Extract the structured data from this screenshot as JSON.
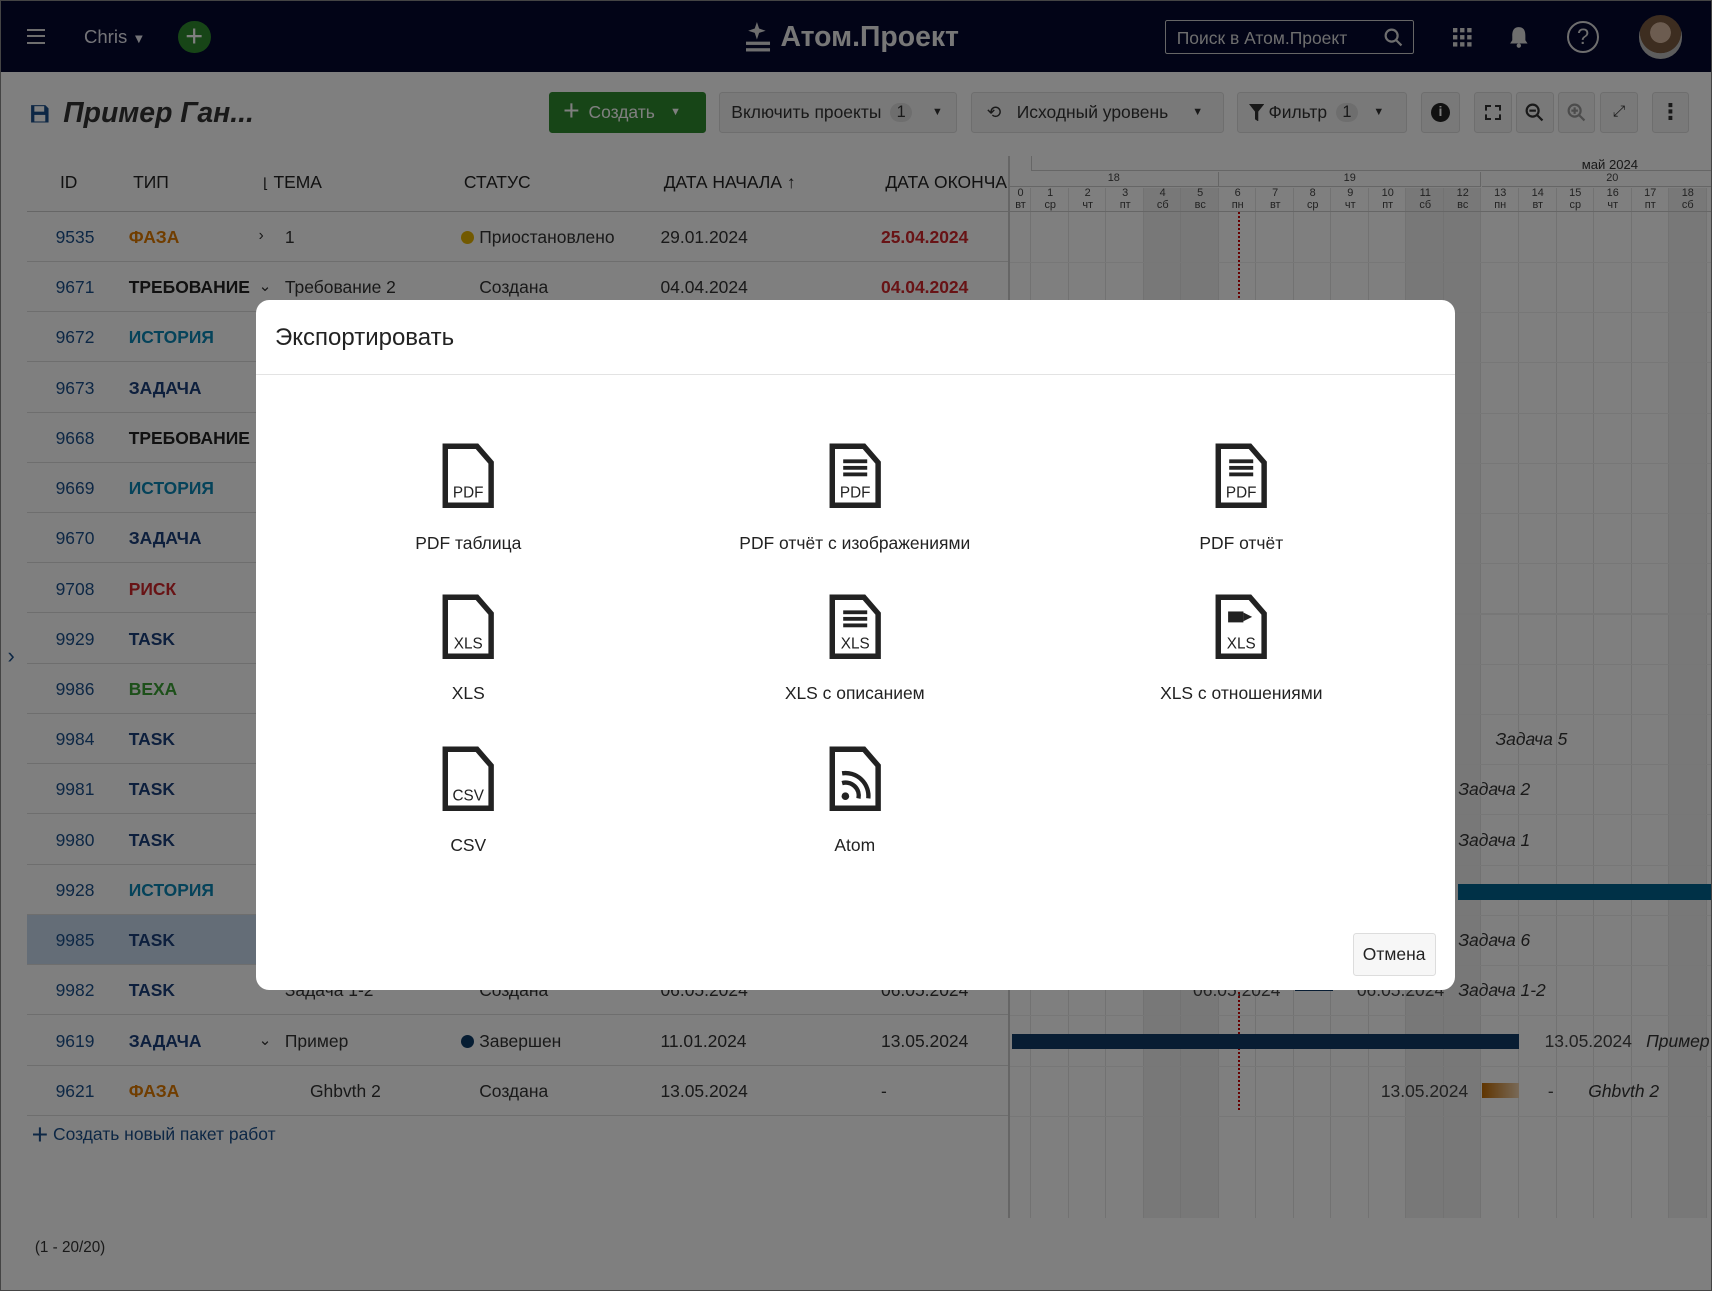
{
  "header": {
    "user": "Chris",
    "logo": "Атом.Проект",
    "search_placeholder": "Поиск в Атом.Проект",
    "icons": [
      "menu-icon",
      "plus-icon",
      "search-icon",
      "apps-grid-icon",
      "bell-icon",
      "help-icon",
      "avatar"
    ]
  },
  "toolbar": {
    "title": "Пример Ган...",
    "create": "Создать",
    "include_projects": "Включить проекты",
    "include_projects_count": "1",
    "baseline": "Исходный уровень",
    "filter": "Фильтр",
    "filter_count": "1"
  },
  "columns": {
    "id": "ID",
    "type": "ТИП",
    "subject": "ТЕМА",
    "status": "СТАТУС",
    "start": "ДАТА НАЧАЛА",
    "end": "ДАТА ОКОНЧА"
  },
  "colors": {
    "phase": "#e07b00",
    "requirement": "#222222",
    "story": "#0a86b4",
    "task_ru": "#1b3f7a",
    "risk": "#d0262b",
    "task": "#1b3f7a",
    "milestone": "#3aa035",
    "overdue": "#d0262b",
    "header_bg": "#04082f",
    "accent_green": "#2e8b2e"
  },
  "rows": [
    {
      "id": "9535",
      "type": "ФАЗА",
      "tc": "phase",
      "expand": ">",
      "subject": "1",
      "dot": "#e5b300",
      "status": "Приостановлено",
      "start": "29.01.2024",
      "end": "25.04.2024",
      "overdue": true
    },
    {
      "id": "9671",
      "type": "ТРЕБОВАНИЕ",
      "tc": "requirement",
      "expand": "v",
      "subject": "Требование 2",
      "status": "Создана",
      "start": "04.04.2024",
      "end": "04.04.2024",
      "overdue": true
    },
    {
      "id": "9672",
      "type": "ИСТОРИЯ",
      "tc": "story"
    },
    {
      "id": "9673",
      "type": "ЗАДАЧА",
      "tc": "task_ru"
    },
    {
      "id": "9668",
      "type": "ТРЕБОВАНИЕ",
      "tc": "requirement"
    },
    {
      "id": "9669",
      "type": "ИСТОРИЯ",
      "tc": "story"
    },
    {
      "id": "9670",
      "type": "ЗАДАЧА",
      "tc": "task_ru"
    },
    {
      "id": "9708",
      "type": "РИСК",
      "tc": "risk"
    },
    {
      "id": "9929",
      "type": "TASK",
      "tc": "task"
    },
    {
      "id": "9986",
      "type": "ВЕХА",
      "tc": "milestone"
    },
    {
      "id": "9984",
      "type": "TASK",
      "tc": "task"
    },
    {
      "id": "9981",
      "type": "TASK",
      "tc": "task"
    },
    {
      "id": "9980",
      "type": "TASK",
      "tc": "task"
    },
    {
      "id": "9928",
      "type": "ИСТОРИЯ",
      "tc": "story"
    },
    {
      "id": "9985",
      "type": "TASK",
      "tc": "task",
      "selected": true
    },
    {
      "id": "9982",
      "type": "TASK",
      "tc": "task",
      "subject": "Задача 1-2",
      "status": "Создана",
      "start": "06.05.2024",
      "end": "06.05.2024"
    },
    {
      "id": "9619",
      "type": "ЗАДАЧА",
      "tc": "task_ru",
      "expand": "v",
      "subject": "Пример",
      "dot": "#0d3a66",
      "status": "Завершен",
      "start": "11.01.2024",
      "end": "13.05.2024"
    },
    {
      "id": "9621",
      "type": "ФАЗА",
      "tc": "phase",
      "subject": "Ghbvth 2",
      "indent": true,
      "status": "Создана",
      "start": "13.05.2024",
      "end": "-"
    }
  ],
  "add_work_package": "Создать новый пакет работ",
  "pagination": "(1 - 20/20)",
  "gantt": {
    "month": "май 2024",
    "weeks": [
      "18",
      "19",
      "20"
    ],
    "days": [
      {
        "d": "0",
        "w": "вт"
      },
      {
        "d": "1",
        "w": "ср"
      },
      {
        "d": "2",
        "w": "чт"
      },
      {
        "d": "3",
        "w": "пт"
      },
      {
        "d": "4",
        "w": "сб"
      },
      {
        "d": "5",
        "w": "вс"
      },
      {
        "d": "6",
        "w": "пн"
      },
      {
        "d": "7",
        "w": "вт"
      },
      {
        "d": "8",
        "w": "ср"
      },
      {
        "d": "9",
        "w": "чт"
      },
      {
        "d": "10",
        "w": "пт"
      },
      {
        "d": "11",
        "w": "сб"
      },
      {
        "d": "12",
        "w": "вс"
      },
      {
        "d": "13",
        "w": "пн"
      },
      {
        "d": "14",
        "w": "вт"
      },
      {
        "d": "15",
        "w": "ср"
      },
      {
        "d": "16",
        "w": "чт"
      },
      {
        "d": "17",
        "w": "пт"
      },
      {
        "d": "18",
        "w": "сб"
      }
    ],
    "today": "6",
    "labels": [
      {
        "row": 10,
        "text": "Задача 5"
      },
      {
        "row": 11,
        "text": "Задача 2"
      },
      {
        "row": 12,
        "text": "Задача 1"
      },
      {
        "row": 14,
        "text": "Задача 6"
      },
      {
        "row": 15,
        "text": "Задача 1-2",
        "date_left": "06.05.2024",
        "date_right": "06.05.2024"
      },
      {
        "row": 16,
        "text": "Пример",
        "date_right": "13.05.2024"
      },
      {
        "row": 17,
        "text": "Ghbvth 2",
        "date_left": "13.05.2024",
        "date_right": "-"
      }
    ]
  },
  "modal": {
    "title": "Экспортировать",
    "cancel": "Отмена",
    "items": [
      {
        "label": "PDF таблица",
        "badge": "PDF",
        "glyph": "plain",
        "icon": "pdf-table-icon"
      },
      {
        "label": "PDF отчёт с изображениями",
        "badge": "PDF",
        "glyph": "lines",
        "icon": "pdf-report-images-icon"
      },
      {
        "label": "PDF отчёт",
        "badge": "PDF",
        "glyph": "lines",
        "icon": "pdf-report-icon"
      },
      {
        "label": "XLS",
        "badge": "XLS",
        "glyph": "plain",
        "icon": "xls-icon"
      },
      {
        "label": "XLS с описанием",
        "badge": "XLS",
        "glyph": "lines",
        "icon": "xls-description-icon"
      },
      {
        "label": "XLS с отношениями",
        "badge": "XLS",
        "glyph": "arrow",
        "icon": "xls-relations-icon"
      },
      {
        "label": "CSV",
        "badge": "CSV",
        "glyph": "plain",
        "icon": "csv-icon"
      },
      {
        "label": "Atom",
        "badge": "",
        "glyph": "rss",
        "icon": "atom-feed-icon"
      }
    ]
  }
}
